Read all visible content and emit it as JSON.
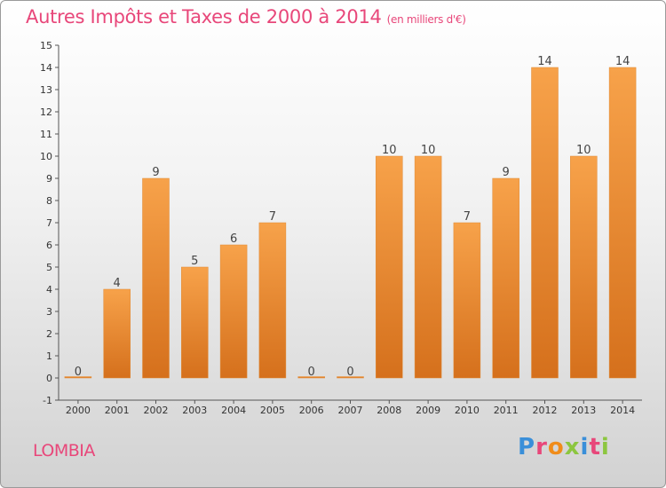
{
  "chart_data": {
    "type": "bar",
    "title": "Autres Impôts et Taxes de 2000 à 2014",
    "unit_label": "(en milliers d'€)",
    "categories": [
      "2000",
      "2001",
      "2002",
      "2003",
      "2004",
      "2005",
      "2006",
      "2007",
      "2008",
      "2009",
      "2010",
      "2011",
      "2012",
      "2013",
      "2014"
    ],
    "values": [
      0,
      4,
      9,
      5,
      6,
      7,
      0,
      0,
      10,
      10,
      7,
      9,
      14,
      10,
      14
    ],
    "ylim": [
      -1,
      15
    ],
    "yticks": [
      "15",
      "14",
      "13",
      "12",
      "11",
      "10",
      "9",
      "8",
      "7",
      "6",
      "5",
      "4",
      "3",
      "2",
      "1",
      "0",
      "-1"
    ],
    "xlabel": "",
    "ylabel": "",
    "grid": false
  },
  "footer": {
    "commune": "LOMBIA",
    "brand": "Proxiti"
  },
  "colors": {
    "bar_top": "#f7a24a",
    "bar_bottom": "#d9731e",
    "title": "#e8477a"
  }
}
